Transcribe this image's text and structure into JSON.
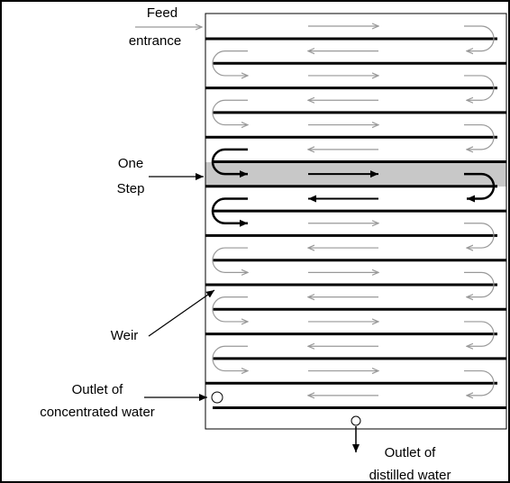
{
  "labels": {
    "feed_entrance": [
      "Feed",
      "entrance"
    ],
    "one_step": [
      "One",
      "Step"
    ],
    "weir": "Weir",
    "outlet_concentrated": [
      "Outlet of",
      "concentrated water"
    ],
    "outlet_distilled": [
      "Outlet of",
      "distilled water"
    ]
  }
}
